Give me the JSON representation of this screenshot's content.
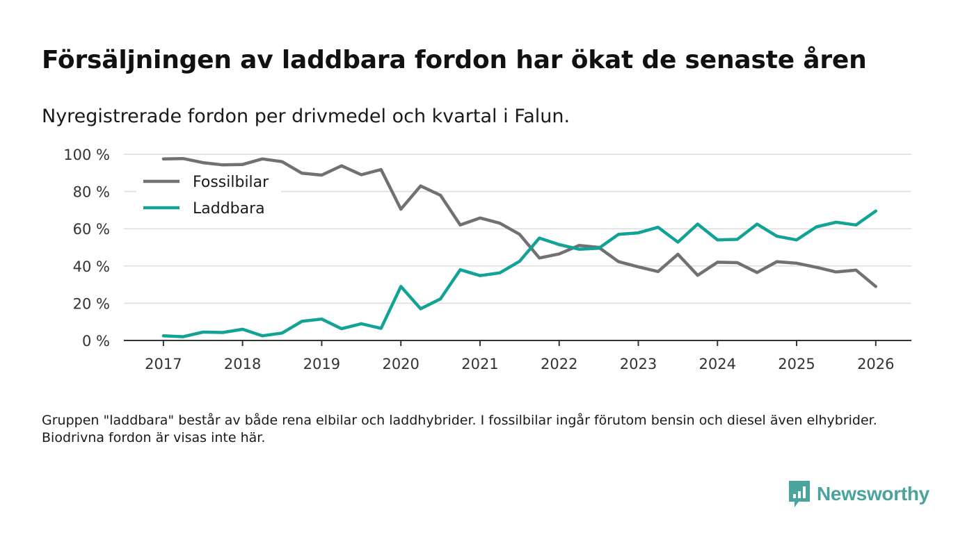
{
  "title": "Försäljningen av laddbara fordon har ökat de senaste åren",
  "subtitle": "Nyregistrerade fordon per drivmedel och kvartal i Falun.",
  "note": "Gruppen \"laddbara\" består av både rena elbilar och laddhybrider. I fossilbilar ingår förutom bensin och diesel även elhybrider. Biodrivna fordon är visas inte här.",
  "brand": {
    "name": "Newsworthy",
    "icon": "chat-bar-chart-icon",
    "color": "#4aa39d"
  },
  "chart_data": {
    "type": "line",
    "title": "Försäljningen av laddbara fordon har ökat de senaste åren",
    "xlabel": "",
    "ylabel": "",
    "x": [
      2017.0,
      2017.25,
      2017.5,
      2017.75,
      2018.0,
      2018.25,
      2018.5,
      2018.75,
      2019.0,
      2019.25,
      2019.5,
      2019.75,
      2020.0,
      2020.25,
      2020.5,
      2020.75,
      2021.0,
      2021.25,
      2021.5,
      2021.75,
      2022.0,
      2022.25,
      2022.5,
      2022.75,
      2023.0,
      2023.25,
      2023.5,
      2023.75,
      2024.0,
      2024.25,
      2024.5,
      2024.75,
      2025.0,
      2025.25,
      2025.5,
      2025.75,
      2026.0
    ],
    "xlim": [
      2016.5,
      2026.45
    ],
    "ylim": [
      0,
      100
    ],
    "x_ticks": [
      2017,
      2018,
      2019,
      2020,
      2021,
      2022,
      2023,
      2024,
      2025,
      2026
    ],
    "x_tick_labels": [
      "2017",
      "2018",
      "2019",
      "2020",
      "2021",
      "2022",
      "2023",
      "2024",
      "2025",
      "2026"
    ],
    "y_ticks": [
      0,
      20,
      40,
      60,
      80,
      100
    ],
    "y_tick_labels": [
      "0 %",
      "20 %",
      "40 %",
      "60 %",
      "80 %",
      "100 %"
    ],
    "grid": true,
    "legend_position": "top-left",
    "series": [
      {
        "name": "Fossilbilar",
        "color": "#717075",
        "values": [
          97.5,
          97.7,
          95.5,
          94.3,
          94.5,
          97.5,
          96.0,
          89.8,
          88.8,
          93.8,
          89.0,
          91.8,
          70.5,
          83.0,
          78.0,
          62.0,
          65.8,
          63.0,
          57.0,
          44.3,
          46.5,
          51.0,
          50.0,
          42.3,
          39.5,
          37.0,
          46.3,
          35.0,
          42.0,
          41.8,
          36.5,
          42.3,
          41.5,
          39.3,
          36.8,
          37.8,
          29.0
        ]
      },
      {
        "name": "Laddbara",
        "color": "#12a396",
        "values": [
          2.5,
          2.0,
          4.5,
          4.3,
          6.0,
          2.5,
          4.0,
          10.3,
          11.5,
          6.3,
          9.0,
          6.5,
          29.0,
          17.0,
          22.3,
          38.0,
          34.8,
          36.3,
          42.5,
          55.0,
          51.5,
          49.0,
          49.5,
          57.0,
          57.8,
          60.8,
          52.8,
          62.5,
          54.0,
          54.3,
          62.5,
          56.0,
          54.0,
          61.0,
          63.5,
          62.0,
          69.5
        ]
      }
    ]
  }
}
